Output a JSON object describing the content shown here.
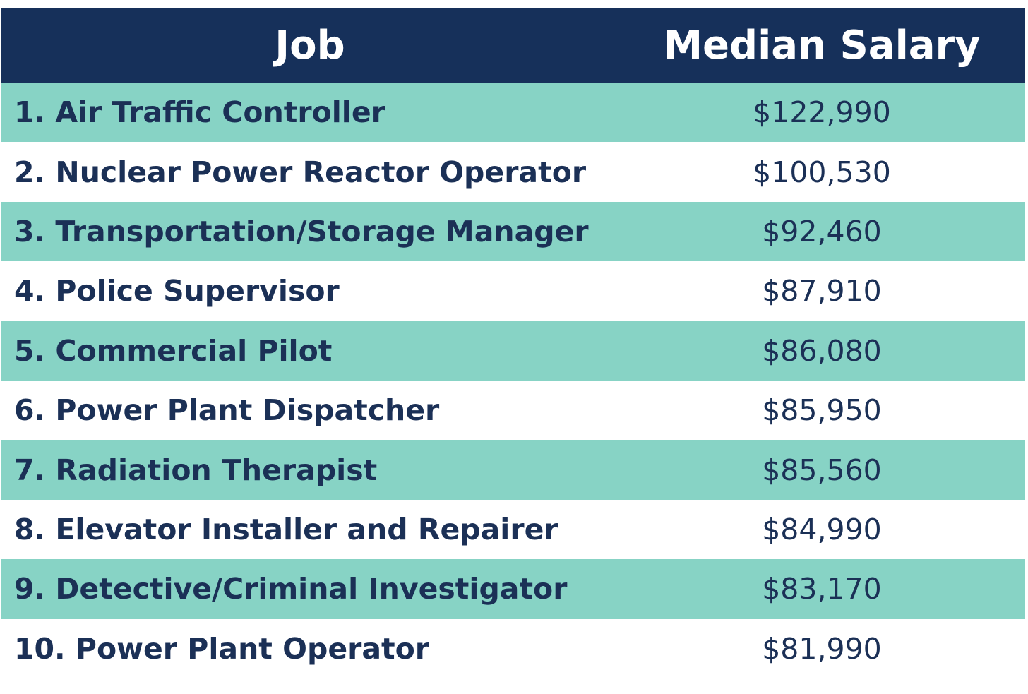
{
  "chart_data": {
    "type": "table",
    "columns": [
      "Job",
      "Median Salary"
    ],
    "rows": [
      {
        "job": "1. Air Traffic Controller",
        "salary": "$122,990"
      },
      {
        "job": "2. Nuclear Power Reactor Operator",
        "salary": "$100,530"
      },
      {
        "job": "3. Transportation/Storage Manager",
        "salary": "$92,460"
      },
      {
        "job": "4. Police Supervisor",
        "salary": "$87,910"
      },
      {
        "job": "5. Commercial Pilot",
        "salary": "$86,080"
      },
      {
        "job": "6. Power Plant Dispatcher",
        "salary": "$85,950"
      },
      {
        "job": "7. Radiation Therapist",
        "salary": "$85,560"
      },
      {
        "job": "8. Elevator Installer and Repairer",
        "salary": "$84,990"
      },
      {
        "job": "9. Detective/Criminal Investigator",
        "salary": "$83,170"
      },
      {
        "job": "10. Power Plant Operator",
        "salary": "$81,990"
      }
    ]
  },
  "colors": {
    "header_bg": "#16305a",
    "stripe": "#87d3c5",
    "text": "#1b3056"
  }
}
